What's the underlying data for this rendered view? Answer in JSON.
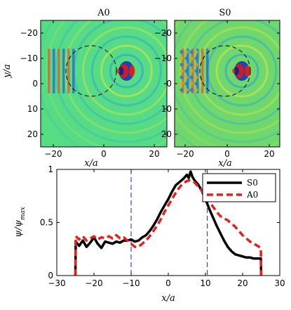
{
  "chart_data": [
    {
      "type": "heatmap",
      "title": "A0",
      "xlabel": "x/a",
      "ylabel": "y/a",
      "xlim": [
        -25,
        25
      ],
      "ylim": [
        25,
        -25
      ],
      "xticks": [
        "−20",
        "0",
        "20"
      ],
      "yticks": [
        "−20",
        "−10",
        "0",
        "10",
        "20"
      ],
      "background_color": "#56dc84",
      "scatterer": {
        "center": [
          0,
          0
        ],
        "radius": 10,
        "style": "dashed"
      },
      "source": {
        "x": 9,
        "y": 0
      }
    },
    {
      "type": "heatmap",
      "title": "S0",
      "xlabel": "x/a",
      "ylabel": "",
      "xlim": [
        -25,
        25
      ],
      "ylim": [
        25,
        -25
      ],
      "xticks": [
        "−20",
        "0",
        "20"
      ],
      "yticks": [
        "−20",
        "−10",
        "0",
        "10",
        "20"
      ],
      "background_color": "#6fd86c",
      "scatterer": {
        "center": [
          0,
          0
        ],
        "radius": 10,
        "style": "dashed"
      },
      "source": {
        "x": 7,
        "y": 0
      }
    },
    {
      "type": "line",
      "xlabel": "x/a",
      "ylabel": "ψ/ψ_max",
      "ylabel_parts": {
        "main": "ψ/ψ",
        "sub": "max"
      },
      "xlim": [
        -30,
        30
      ],
      "ylim": [
        0,
        1
      ],
      "xticks": [
        "−30",
        "−20",
        "−10",
        "0",
        "10",
        "20",
        "30"
      ],
      "yticks": [
        "0",
        "0.5",
        "1"
      ],
      "vlines": [
        -10,
        10.5
      ],
      "legend": "top-right",
      "series": [
        {
          "name": "S0",
          "color": "#000000",
          "style": "solid",
          "x": [
            -25,
            -24.9,
            -24,
            -23,
            -22,
            -21,
            -20,
            -19,
            -18,
            -17,
            -16,
            -15,
            -14,
            -13,
            -12,
            -11,
            -10,
            -9,
            -8,
            -7,
            -6,
            -5,
            -4,
            -3,
            -2,
            -1,
            0,
            1,
            2,
            3,
            4,
            5,
            5.5,
            6,
            6.5,
            7,
            8,
            9,
            10,
            11,
            12,
            13,
            14,
            15,
            16,
            17,
            18,
            19,
            20,
            21,
            22,
            23,
            24,
            24.9,
            25
          ],
          "y": [
            0,
            0.32,
            0.28,
            0.33,
            0.27,
            0.31,
            0.36,
            0.3,
            0.26,
            0.32,
            0.31,
            0.3,
            0.32,
            0.31,
            0.33,
            0.33,
            0.34,
            0.32,
            0.33,
            0.36,
            0.38,
            0.42,
            0.47,
            0.53,
            0.6,
            0.66,
            0.72,
            0.79,
            0.85,
            0.88,
            0.91,
            0.95,
            0.92,
            0.98,
            0.93,
            0.9,
            0.86,
            0.8,
            0.72,
            0.63,
            0.55,
            0.47,
            0.4,
            0.33,
            0.27,
            0.23,
            0.2,
            0.19,
            0.18,
            0.17,
            0.17,
            0.16,
            0.16,
            0.16,
            0
          ]
        },
        {
          "name": "A0",
          "color": "#e8201c",
          "style": "dashed",
          "x": [
            -25,
            -24.9,
            -24,
            -23,
            -22,
            -21,
            -20,
            -19,
            -18,
            -17,
            -16,
            -15,
            -14,
            -13,
            -12,
            -11,
            -10,
            -9,
            -8,
            -7,
            -6,
            -5,
            -4,
            -3,
            -2,
            -1,
            0,
            1,
            2,
            3,
            4,
            5,
            6,
            7,
            8,
            9,
            10,
            11,
            12,
            13,
            14,
            15,
            16,
            17,
            18,
            19,
            20,
            21,
            22,
            23,
            24,
            24.9,
            25
          ],
          "y": [
            0,
            0.37,
            0.34,
            0.37,
            0.33,
            0.35,
            0.37,
            0.34,
            0.36,
            0.35,
            0.37,
            0.35,
            0.38,
            0.35,
            0.36,
            0.33,
            0.3,
            0.27,
            0.27,
            0.3,
            0.33,
            0.37,
            0.42,
            0.47,
            0.53,
            0.6,
            0.66,
            0.72,
            0.78,
            0.83,
            0.87,
            0.89,
            0.9,
            0.88,
            0.84,
            0.8,
            0.75,
            0.7,
            0.65,
            0.6,
            0.56,
            0.54,
            0.52,
            0.49,
            0.46,
            0.42,
            0.38,
            0.35,
            0.32,
            0.3,
            0.28,
            0.26,
            0
          ]
        }
      ]
    }
  ]
}
